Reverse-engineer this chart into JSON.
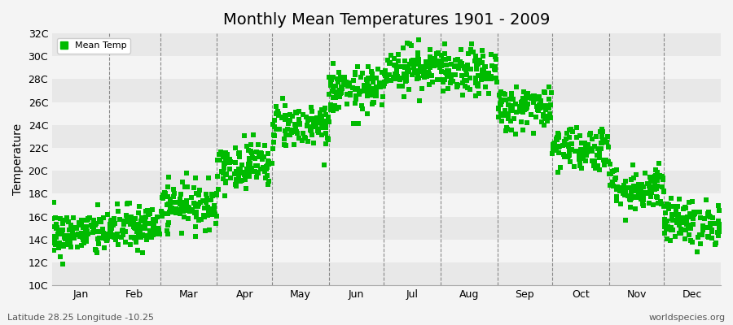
{
  "title": "Monthly Mean Temperatures 1901 - 2009",
  "ylabel": "Temperature",
  "ylim": [
    10,
    32
  ],
  "yticks": [
    10,
    12,
    14,
    16,
    18,
    20,
    22,
    24,
    26,
    28,
    30,
    32
  ],
  "ytick_labels": [
    "10C",
    "12C",
    "14C",
    "16C",
    "18C",
    "20C",
    "22C",
    "24C",
    "26C",
    "28C",
    "30C",
    "32C"
  ],
  "month_labels": [
    "Jan",
    "Feb",
    "Mar",
    "Apr",
    "May",
    "Jun",
    "Jul",
    "Aug",
    "Sep",
    "Oct",
    "Nov",
    "Dec"
  ],
  "month_days": [
    31,
    28,
    31,
    30,
    31,
    30,
    31,
    31,
    30,
    31,
    30,
    31
  ],
  "marker_color": "#00BB00",
  "marker_size": 4,
  "bg_color": "#F4F4F4",
  "band_color_light": "#F4F4F4",
  "band_color_dark": "#E8E8E8",
  "legend_label": "Mean Temp",
  "subtitle_left": "Latitude 28.25 Longitude -10.25",
  "subtitle_right": "worldspecies.org",
  "mean_temps": [
    14.5,
    15.0,
    17.0,
    20.5,
    24.0,
    27.0,
    29.0,
    28.5,
    25.5,
    22.0,
    18.5,
    15.5
  ],
  "temp_std": 1.0,
  "n_years": 109,
  "seed": 42,
  "dashed_line_color": "#888888"
}
